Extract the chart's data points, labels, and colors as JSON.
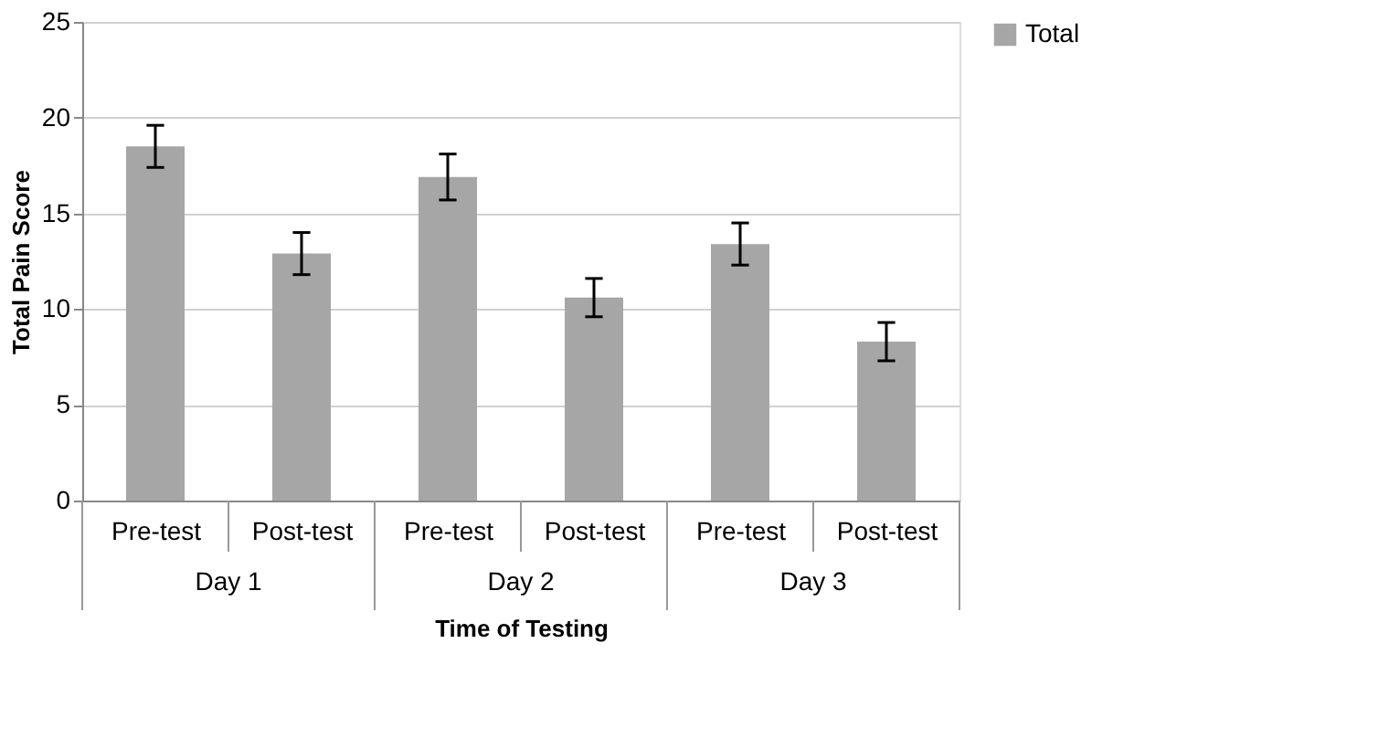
{
  "chart_data": {
    "type": "bar",
    "xlabel": "Time of Testing",
    "ylabel": "Total Pain Score",
    "categories": [
      "Pre-test",
      "Post-test",
      "Pre-test",
      "Post-test",
      "Pre-test",
      "Post-test"
    ],
    "annotations": [
      "Day 1",
      "Day 2",
      "Day 3"
    ],
    "series": [
      {
        "name": "Total",
        "color": "#a6a6a6",
        "values": [
          18.5,
          12.9,
          16.9,
          10.6,
          13.4,
          8.3
        ],
        "errors": [
          1.1,
          1.1,
          1.2,
          1.0,
          1.1,
          1.0
        ]
      }
    ],
    "ylim": [
      0,
      25
    ],
    "yticks": [
      0,
      5,
      10,
      15,
      20,
      25
    ],
    "grid": "y",
    "legend": "right"
  }
}
